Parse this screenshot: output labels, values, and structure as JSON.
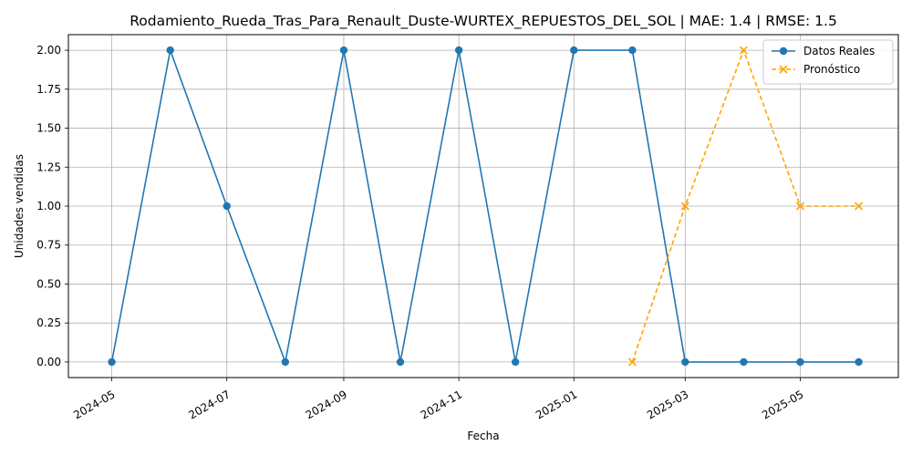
{
  "chart_data": {
    "type": "line",
    "title": "Rodamiento_Rueda_Tras_Para_Renault_Duste-WURTEX_REPUESTOS_DEL_SOL | MAE: 1.4 | RMSE: 1.5",
    "xlabel": "Fecha",
    "ylabel": "Unidades vendidas",
    "xlim": [
      "2024-04-08",
      "2025-06-22"
    ],
    "ylim": [
      -0.1,
      2.1
    ],
    "x_ticks": [
      "2024-05",
      "2024-07",
      "2024-09",
      "2024-11",
      "2025-01",
      "2025-03",
      "2025-05"
    ],
    "x_tick_dates": [
      "2024-05-01",
      "2024-07-01",
      "2024-09-01",
      "2024-11-01",
      "2025-01-01",
      "2025-03-01",
      "2025-05-01"
    ],
    "y_ticks": [
      "0.00",
      "0.25",
      "0.50",
      "0.75",
      "1.00",
      "1.25",
      "1.50",
      "1.75",
      "2.00"
    ],
    "y_tick_values": [
      0,
      0.25,
      0.5,
      0.75,
      1.0,
      1.25,
      1.5,
      1.75,
      2.0
    ],
    "grid": true,
    "legend_position": "top-right",
    "series": [
      {
        "name": "Datos Reales",
        "color": "#1f77b4",
        "marker": "circle",
        "linestyle": "solid",
        "x": [
          "2024-05-01",
          "2024-06-01",
          "2024-07-01",
          "2024-08-01",
          "2024-09-01",
          "2024-10-01",
          "2024-11-01",
          "2024-12-01",
          "2025-01-01",
          "2025-02-01",
          "2025-03-01",
          "2025-04-01",
          "2025-05-01",
          "2025-06-01"
        ],
        "values": [
          0,
          2,
          1,
          0,
          2,
          0,
          2,
          0,
          2,
          2,
          0,
          0,
          0,
          0
        ]
      },
      {
        "name": "Pronóstico",
        "color": "#ffa500",
        "marker": "x",
        "linestyle": "dashed",
        "x": [
          "2025-02-01",
          "2025-03-01",
          "2025-04-01",
          "2025-05-01",
          "2025-06-01"
        ],
        "values": [
          0,
          1,
          2,
          1,
          1
        ]
      }
    ]
  }
}
